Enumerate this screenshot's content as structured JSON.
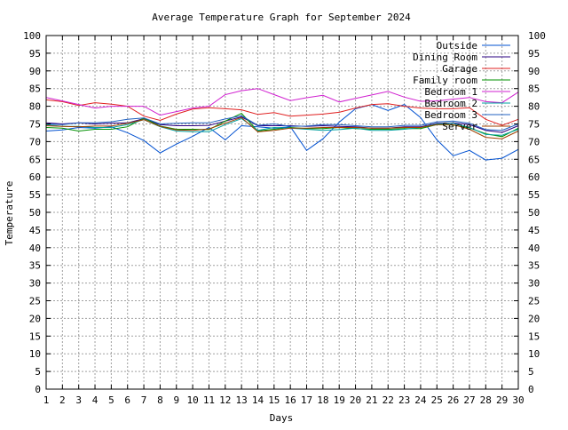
{
  "chart_data": {
    "type": "line",
    "title": "Average Temperature Graph for September 2024",
    "xlabel": "Days",
    "ylabel": "Temperature",
    "xlim": [
      1,
      30
    ],
    "ylim": [
      0,
      100
    ],
    "x_ticks": [
      "1",
      "2",
      "3",
      "4",
      "5",
      "6",
      "7",
      "8",
      "9",
      "10",
      "11",
      "12",
      "13",
      "14",
      "15",
      "16",
      "17",
      "18",
      "19",
      "20",
      "21",
      "22",
      "23",
      "24",
      "25",
      "26",
      "27",
      "28",
      "29",
      "30"
    ],
    "y_ticks": [
      "0",
      "5",
      "10",
      "15",
      "20",
      "25",
      "30",
      "35",
      "40",
      "45",
      "50",
      "55",
      "60",
      "65",
      "70",
      "75",
      "80",
      "85",
      "90",
      "95",
      "100"
    ],
    "grid": true,
    "legend_position": "top-right",
    "x": [
      1,
      2,
      3,
      4,
      5,
      6,
      7,
      8,
      9,
      10,
      11,
      12,
      13,
      14,
      15,
      16,
      17,
      18,
      19,
      20,
      21,
      22,
      23,
      24,
      25,
      26,
      27,
      28,
      29,
      30
    ],
    "series": [
      {
        "name": "Outside",
        "color": "#0050d0",
        "values": [
          73,
          73.3,
          74,
          73.8,
          74.2,
          72.5,
          70.3,
          66.8,
          69.3,
          71.5,
          74,
          70.5,
          74.5,
          74.2,
          73.8,
          74.2,
          67.5,
          70.8,
          75.5,
          79.3,
          80.5,
          78.8,
          80.5,
          76.8,
          70.5,
          66,
          67.5,
          64.8,
          65.3,
          67.8
        ]
      },
      {
        "name": "Dining Room",
        "color": "#2a0080",
        "values": [
          75.3,
          75,
          75.3,
          75,
          75.2,
          75.3,
          76.5,
          74.8,
          74.5,
          74.5,
          74.6,
          75.8,
          77,
          74.5,
          74.5,
          74.5,
          74.3,
          74.5,
          74.3,
          74.2,
          73.8,
          73.8,
          74.2,
          74.2,
          75.2,
          75.3,
          74.8,
          73.2,
          72.6,
          74.5
        ]
      },
      {
        "name": "Garage",
        "color": "#e02020",
        "values": [
          81.8,
          81.3,
          80.2,
          81,
          80.6,
          80,
          77.2,
          76,
          77.8,
          79.2,
          79.6,
          79.3,
          79,
          77.7,
          78.2,
          77.2,
          77.5,
          77.8,
          78.3,
          79.5,
          80.5,
          80.7,
          80,
          79.5,
          79.3,
          79.3,
          79.6,
          76.3,
          74.6,
          76.3
        ]
      },
      {
        "name": "Family room",
        "color": "#009000",
        "values": [
          74,
          73.8,
          73,
          73.5,
          73.5,
          74.2,
          76.6,
          74.4,
          73.5,
          73.5,
          73.4,
          75.8,
          78,
          73,
          73.5,
          74,
          73.7,
          73.7,
          74,
          73.7,
          73.5,
          73.5,
          73.7,
          73.7,
          74.8,
          74.7,
          73.9,
          72.2,
          71.4,
          73.8
        ]
      },
      {
        "name": "Bedroom 1",
        "color": "#d020d0",
        "values": [
          82.5,
          81.5,
          80.5,
          79.5,
          80,
          80,
          80,
          77.5,
          78.5,
          79.5,
          80,
          83.3,
          84.4,
          85,
          83.3,
          81.6,
          82.4,
          83.1,
          81.2,
          82.2,
          83.2,
          84.2,
          82.6,
          81.4,
          81.5,
          82,
          82.5,
          81.3,
          81,
          84
        ]
      },
      {
        "name": "Bedroom 2",
        "color": "#00a0a0",
        "values": [
          74.8,
          74.3,
          74.3,
          74,
          74,
          74.8,
          76.2,
          74.2,
          73,
          72.8,
          72.8,
          74.8,
          76.5,
          73.2,
          74,
          73.8,
          73.5,
          73.2,
          73.4,
          73.8,
          73.2,
          73.2,
          73.5,
          74,
          75,
          75.2,
          74,
          72,
          71.8,
          73.5
        ]
      },
      {
        "name": "Bedroom 3",
        "color": "#2060c0",
        "values": [
          75,
          74.8,
          75.3,
          75.3,
          75.6,
          76.3,
          76.7,
          75,
          75.2,
          75.3,
          75.3,
          76.4,
          77.3,
          74.6,
          75,
          74.3,
          74.4,
          74.8,
          74.8,
          74.5,
          74.2,
          74.2,
          74.6,
          74.6,
          75.6,
          75.8,
          75.2,
          73.4,
          73.2,
          75
        ]
      },
      {
        "name": "Server",
        "color": "#a04000",
        "values": [
          74.5,
          74.3,
          74.2,
          74.4,
          74.4,
          75.2,
          76.2,
          74.3,
          73.3,
          73.2,
          73.6,
          75.2,
          76.8,
          72.8,
          73.2,
          73.8,
          73.8,
          74,
          74,
          74,
          73.8,
          73.8,
          74,
          74,
          74.8,
          74.8,
          73.5,
          71.2,
          70.8,
          73
        ]
      }
    ]
  }
}
